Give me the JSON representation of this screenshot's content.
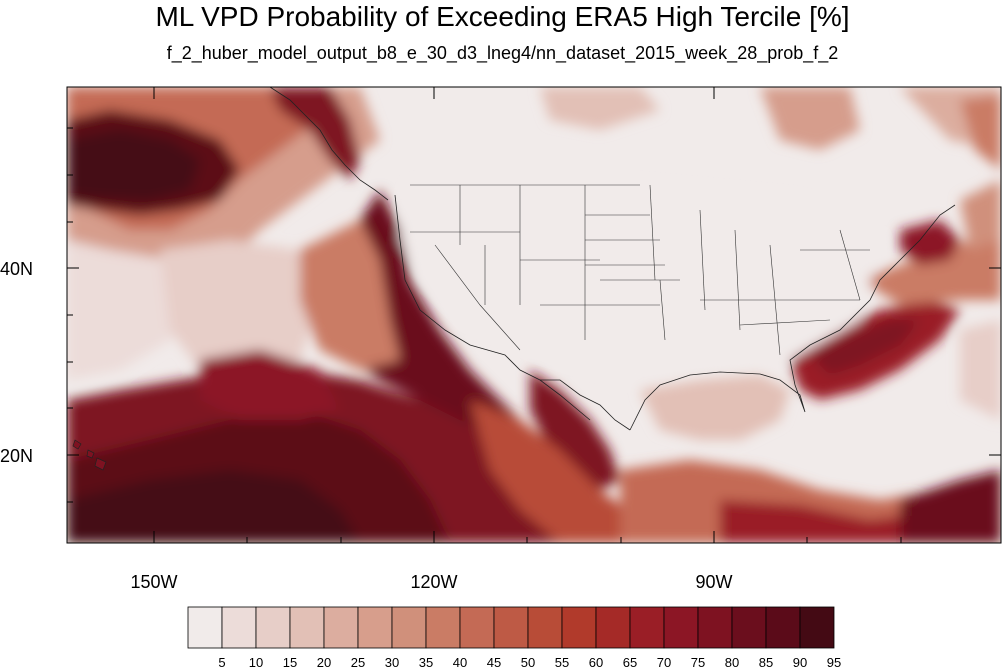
{
  "title": "ML VPD Probability of Exceeding ERA5 High Tercile [%]",
  "subtitle": "f_2_huber_model_output_b8_e_30_d3_lneg4/nn_dataset_2015_week_28_prob_f_2",
  "map": {
    "type": "filled contour map",
    "region": "North America, North Pacific and Western Atlantic",
    "lon_labels": [
      "150W",
      "120W",
      "90W"
    ],
    "lat_labels": [
      "40N",
      "20N"
    ]
  },
  "colorbar": {
    "labels": [
      "5",
      "10",
      "15",
      "20",
      "25",
      "30",
      "35",
      "40",
      "45",
      "50",
      "55",
      "60",
      "65",
      "70",
      "75",
      "80",
      "85",
      "90",
      "95"
    ],
    "colors": [
      "#f1ebea",
      "#ecdcd9",
      "#e7cec8",
      "#e2c0b6",
      "#dcad9f",
      "#d79e8c",
      "#d0907b",
      "#ca7c65",
      "#c46a55",
      "#be5a45",
      "#b84c37",
      "#b13a2b",
      "#a52a27",
      "#9a1e26",
      "#8c1625",
      "#7e1221",
      "#6b0e1d",
      "#5b0b19",
      "#440a14"
    ]
  }
}
